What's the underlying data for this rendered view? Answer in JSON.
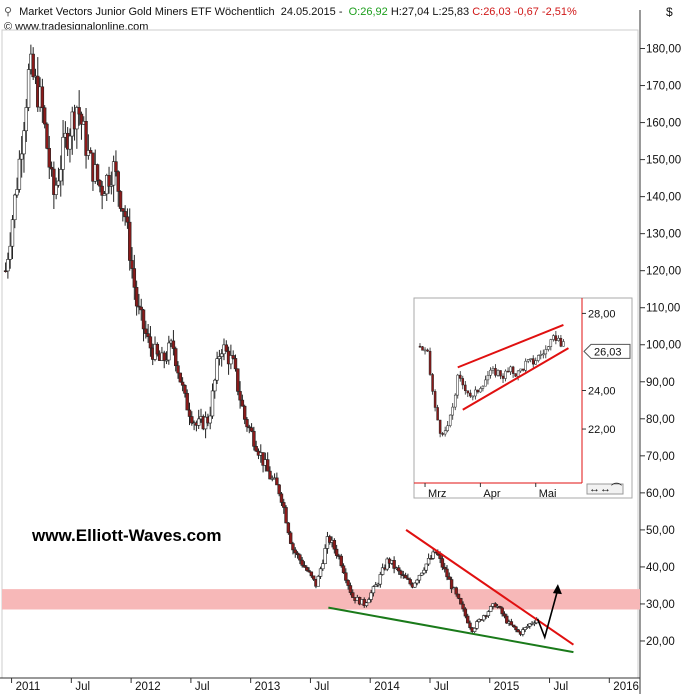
{
  "header": {
    "instrument": "Market Vectors Junior Gold Miners ETF Wöchentlich",
    "date": "24.05.2015",
    "open": "O:26,92",
    "high": "H:27,04",
    "low": "L:25,83",
    "close": "C:26,03",
    "change": "-0,67",
    "change_pct": "-2,51%",
    "source": "© www.tradesignalonline.com",
    "currency": "$"
  },
  "watermark": "www.Elliott-Waves.com",
  "colors": {
    "up_candle": "#ffffff",
    "down_candle": "#8b1a1a",
    "support_zone": "#f7b8b8",
    "resistance_line": "#e01010",
    "support_line": "#1a7a1a",
    "arrow": "#000000"
  },
  "chart_data": [
    {
      "type": "candlestick",
      "title": "Market Vectors Junior Gold Miners ETF Wöchentlich",
      "ylim": [
        10,
        185
      ],
      "y_ticks": [
        "180,00",
        "170,00",
        "160,00",
        "150,00",
        "140,00",
        "130,00",
        "120,00",
        "110,00",
        "100,00",
        "90,00",
        "80,00",
        "70,00",
        "60,00",
        "50,00",
        "40,00",
        "30,00",
        "20,00"
      ],
      "x_ticks": [
        "2011",
        "Jul",
        "2012",
        "Jul",
        "2013",
        "Jul",
        "2014",
        "Jul",
        "2015",
        "Jul",
        "2016"
      ],
      "price_path": [
        [
          "2010.95",
          120
        ],
        [
          "2011.05",
          145
        ],
        [
          "2011.15",
          175
        ],
        [
          "2011.25",
          165
        ],
        [
          "2011.35",
          140
        ],
        [
          "2011.45",
          155
        ],
        [
          "2011.55",
          165
        ],
        [
          "2011.65",
          150
        ],
        [
          "2011.75",
          142
        ],
        [
          "2011.85",
          148
        ],
        [
          "2011.95",
          135
        ],
        [
          "2012.05",
          110
        ],
        [
          "2012.15",
          100
        ],
        [
          "2012.25",
          95
        ],
        [
          "2012.35",
          100
        ],
        [
          "2012.45",
          85
        ],
        [
          "2012.55",
          78
        ],
        [
          "2012.65",
          80
        ],
        [
          "2012.75",
          100
        ],
        [
          "2012.85",
          95
        ],
        [
          "2012.95",
          80
        ],
        [
          "2013.05",
          73
        ],
        [
          "2013.15",
          65
        ],
        [
          "2013.25",
          60
        ],
        [
          "2013.35",
          45
        ],
        [
          "2013.45",
          40
        ],
        [
          "2013.55",
          35
        ],
        [
          "2013.65",
          48
        ],
        [
          "2013.75",
          42
        ],
        [
          "2013.85",
          32
        ],
        [
          "2013.95",
          30
        ],
        [
          "2014.05",
          35
        ],
        [
          "2014.15",
          42
        ],
        [
          "2014.25",
          38
        ],
        [
          "2014.35",
          35
        ],
        [
          "2014.45",
          40
        ],
        [
          "2014.55",
          44
        ],
        [
          "2014.65",
          37
        ],
        [
          "2014.75",
          30
        ],
        [
          "2014.85",
          23
        ],
        [
          "2014.95",
          27
        ],
        [
          "2015.05",
          30
        ],
        [
          "2015.15",
          25
        ],
        [
          "2015.25",
          22
        ],
        [
          "2015.35",
          25
        ],
        [
          "2015.40",
          26
        ]
      ],
      "support_zone": [
        28.5,
        34
      ],
      "resistance_line": {
        "from": [
          "2014.30",
          50
        ],
        "to": [
          "2015.70",
          19
        ]
      },
      "support_line": {
        "from": [
          "2013.65",
          29
        ],
        "to": [
          "2015.70",
          17
        ]
      },
      "projection_arrow": [
        [
          "2015.40",
          26
        ],
        [
          "2015.46",
          21
        ],
        [
          "2015.57",
          34
        ]
      ]
    },
    {
      "type": "candlestick",
      "title": "inset",
      "ylim": [
        19.2,
        28.8
      ],
      "y_ticks": [
        "28,00",
        "24,00",
        "22,00"
      ],
      "last_value": "26,03",
      "x_ticks": [
        "Mrz",
        "Apr",
        "Mai"
      ],
      "price_path": [
        [
          0,
          26.3
        ],
        [
          3,
          25.8
        ],
        [
          6,
          23.0
        ],
        [
          9,
          21.5
        ],
        [
          12,
          22.5
        ],
        [
          15,
          24.6
        ],
        [
          18,
          24.2
        ],
        [
          21,
          23.6
        ],
        [
          24,
          24.3
        ],
        [
          27,
          24.8
        ],
        [
          30,
          25.0
        ],
        [
          33,
          24.8
        ],
        [
          36,
          25.0
        ],
        [
          39,
          24.9
        ],
        [
          42,
          25.4
        ],
        [
          45,
          25.5
        ],
        [
          48,
          25.9
        ],
        [
          51,
          26.2
        ],
        [
          54,
          26.8
        ],
        [
          57,
          26.3
        ]
      ],
      "channel_top": {
        "from": [
          15,
          25.2
        ],
        "to": [
          57,
          27.4
        ]
      },
      "channel_bottom": {
        "from": [
          17,
          23.0
        ],
        "to": [
          59,
          26.2
        ]
      }
    }
  ]
}
